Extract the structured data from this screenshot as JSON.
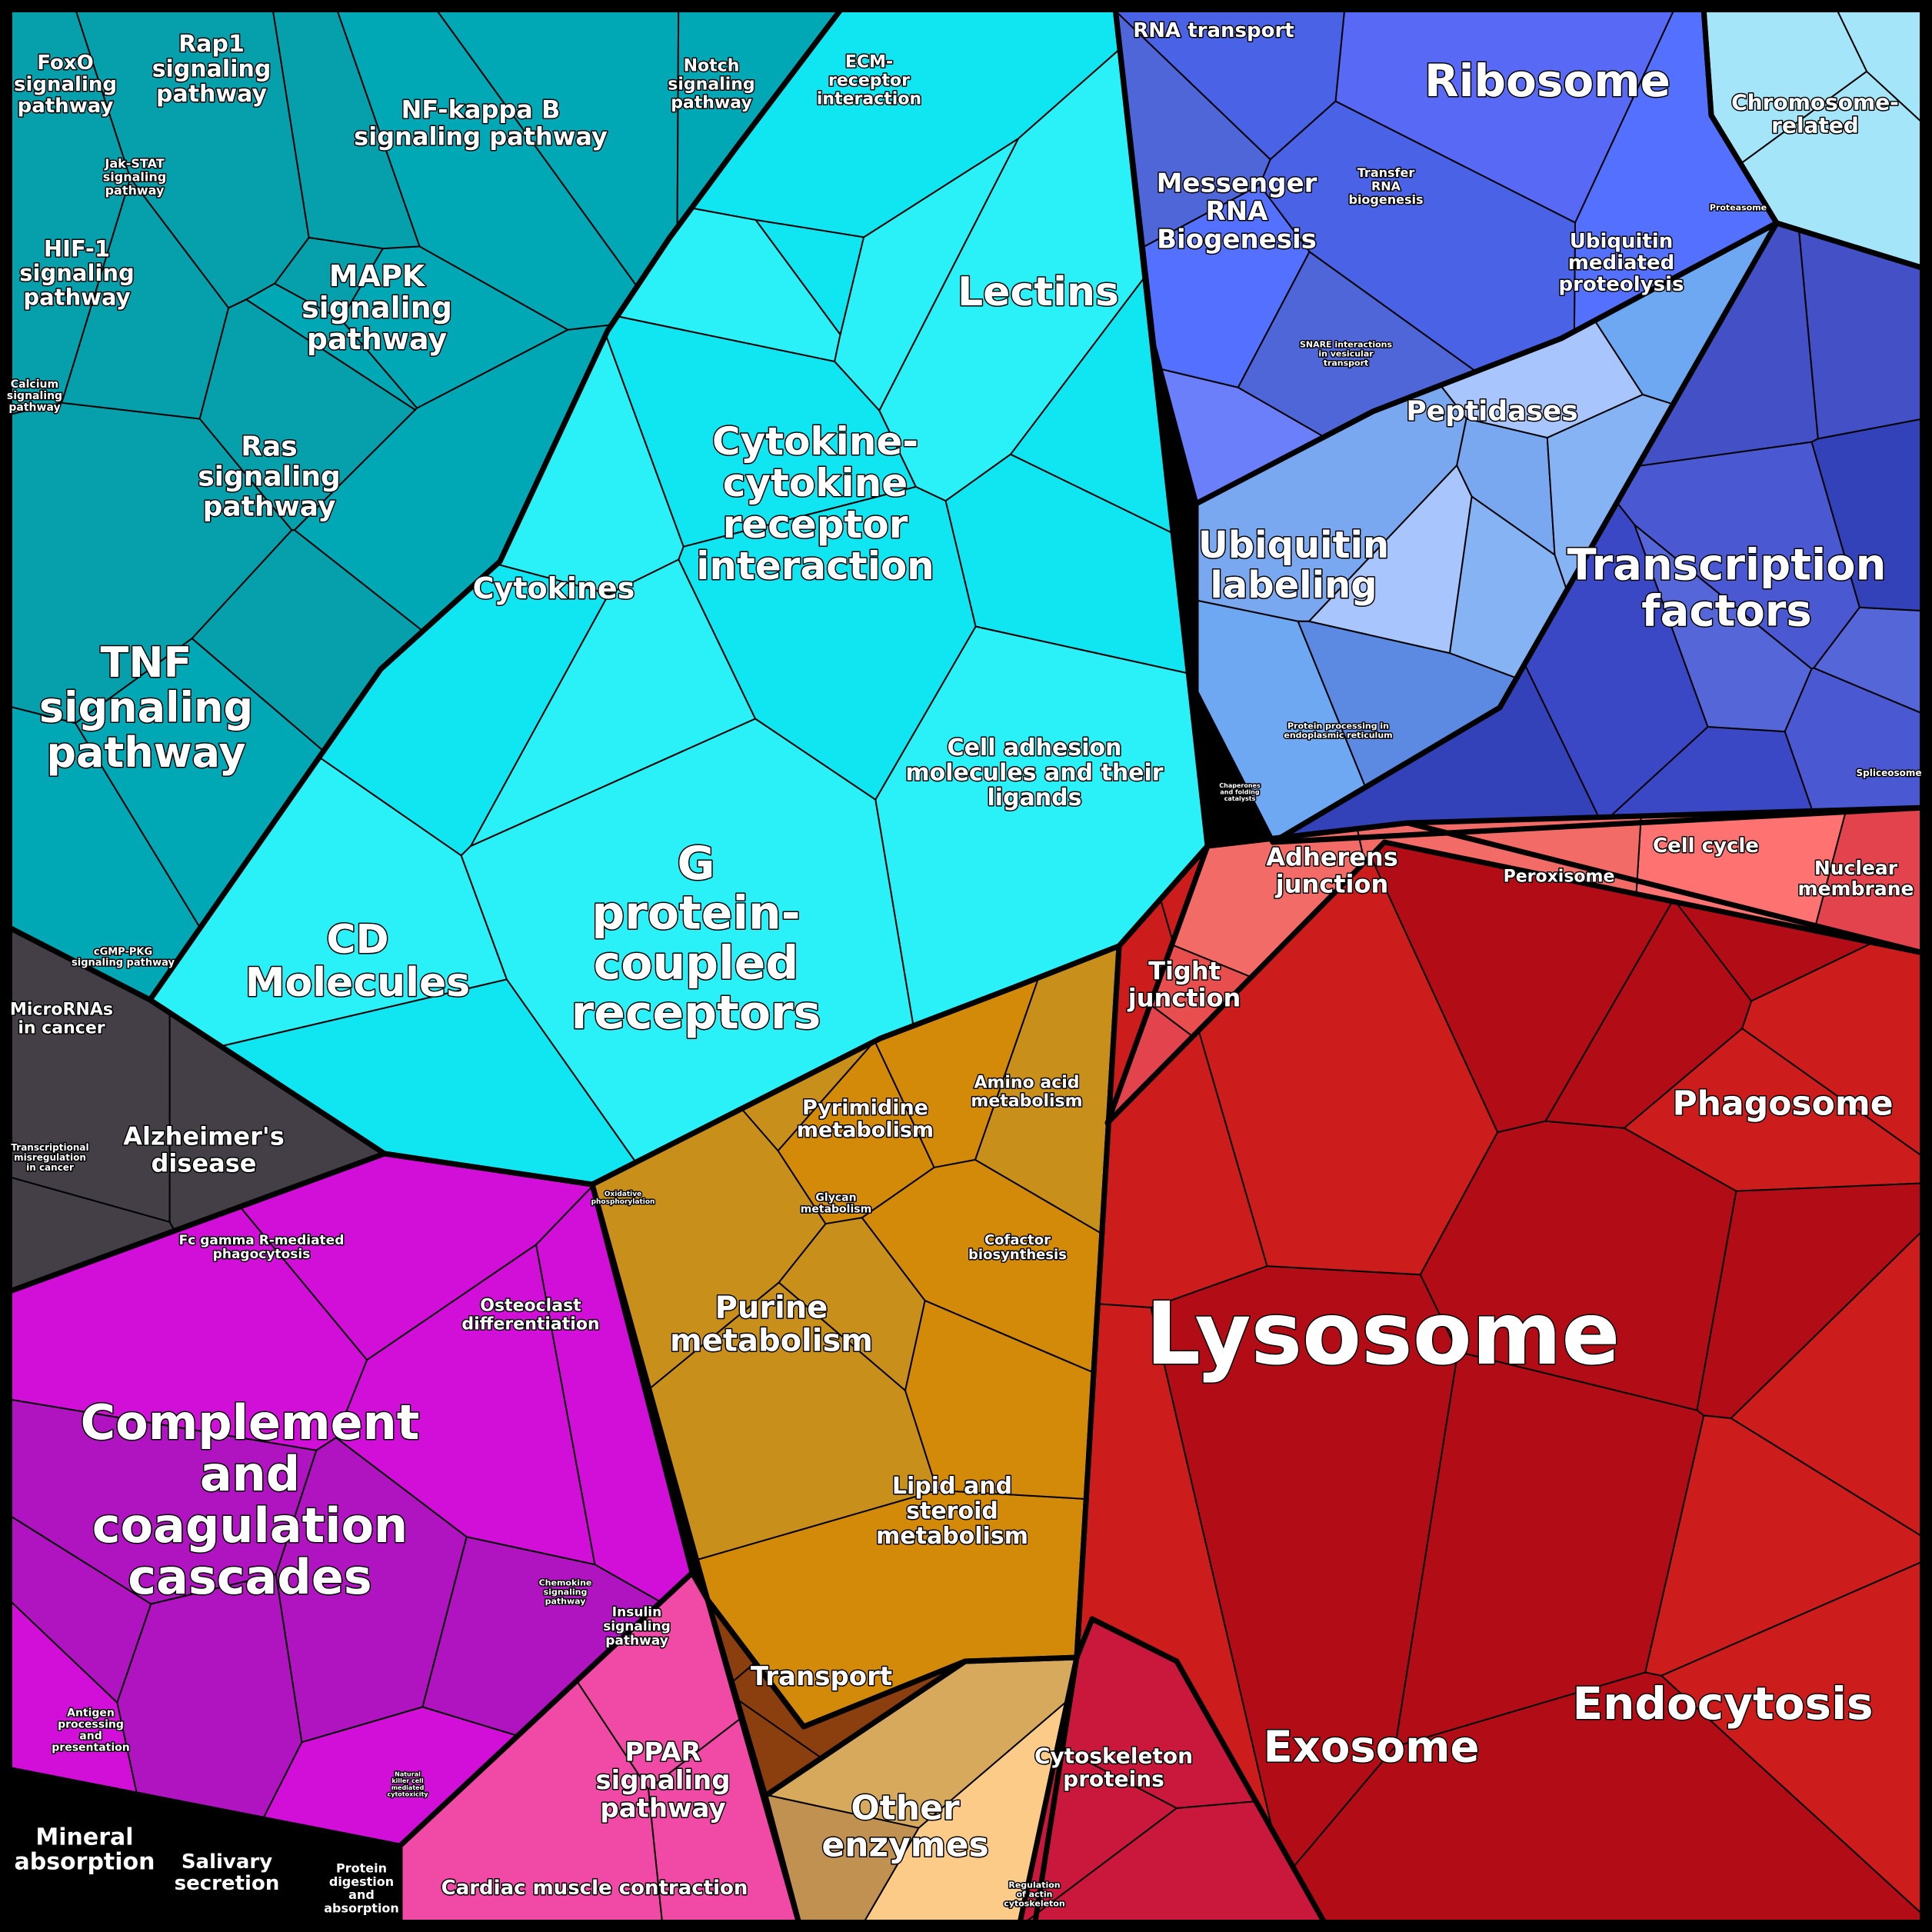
{
  "regions": [
    {
      "id": "signaling",
      "color": "#00b4c4",
      "shades": [
        "#00a7b5",
        "#00b5c3",
        "#11c0cf",
        "#05a0ac",
        "#30c8d8",
        "#00c3d2"
      ]
    },
    {
      "id": "cytokines",
      "color": "#22f4fd",
      "shades": [
        "#1afcff",
        "#2af0f8",
        "#45f8fc",
        "#3de8ef",
        "#10e6f2",
        "#38dee8"
      ]
    },
    {
      "id": "neuro",
      "color": "#3a373d",
      "shades": [
        "#3a373d",
        "#2f2b30",
        "#443f47"
      ]
    },
    {
      "id": "immune",
      "color": "#b414c4",
      "shades": [
        "#b014c0",
        "#c321c8",
        "#9c05a8",
        "#d10fd8",
        "#e822e8",
        "#a80bb4"
      ]
    },
    {
      "id": "insulin",
      "color": "#ee2c9a",
      "shades": [
        "#ee2c9a",
        "#f04aa6",
        "#e51a8c"
      ]
    },
    {
      "id": "metabolism",
      "color": "#eba628",
      "shades": [
        "#eda633",
        "#f3b23f",
        "#c8901a",
        "#e68a08",
        "#f8a020",
        "#d28a08"
      ]
    },
    {
      "id": "transport",
      "color": "#8b3f0e",
      "shades": [
        "#8b3f0e"
      ]
    },
    {
      "id": "enzymes",
      "color": "#dbab5c",
      "shades": [
        "#e6bd6f",
        "#d6a95c",
        "#c09150",
        "#fccb88"
      ]
    },
    {
      "id": "rna",
      "color": "#4d63ed",
      "shades": [
        "#5869f5",
        "#4a62e6",
        "#6a7ff9",
        "#5470ff",
        "#4e66d8"
      ]
    },
    {
      "id": "chromosome",
      "color": "#8fd4ef",
      "shades": [
        "#a5e5f9",
        "#7cc1e6",
        "#93d3ef"
      ]
    },
    {
      "id": "ubiquitin",
      "color": "#6e9ef0",
      "shades": [
        "#6ea7f2",
        "#85b3f4",
        "#5c8ae2",
        "#79a8f0",
        "#a9c5fd"
      ]
    },
    {
      "id": "tf",
      "color": "#3f4fcc",
      "shades": [
        "#3a48c5",
        "#4a58d2",
        "#3342b8",
        "#5566d9",
        "#4350c6"
      ]
    },
    {
      "id": "lysosome",
      "color": "#bb0f1b",
      "shades": [
        "#b20d16",
        "#c4131c",
        "#a20717",
        "#cd1c1c",
        "#be1a20",
        "#aa0a19"
      ]
    },
    {
      "id": "junction",
      "color": "#f05e5f",
      "shades": [
        "#f36b66",
        "#e3434d",
        "#ff7272",
        "#e84e4e"
      ]
    },
    {
      "id": "cytoskeleton",
      "color": "#e21f43",
      "shades": [
        "#e3264a",
        "#f4344e",
        "#c9183b"
      ]
    }
  ],
  "labels": [
    {
      "text": "FoxO\nsignaling\npathway",
      "size": 26
    },
    {
      "text": "Rap1\nsignaling\npathway",
      "size": 30
    },
    {
      "text": "NF-kappa B\nsignaling pathway",
      "size": 32
    },
    {
      "text": "Notch\nsignaling\npathway",
      "size": 22
    },
    {
      "text": "ECM-\nreceptor\ninteraction",
      "size": 22
    },
    {
      "text": "Jak-STAT\nsignaling\npathway",
      "size": 16
    },
    {
      "text": "HIF-1\nsignaling\npathway",
      "size": 29
    },
    {
      "text": "MAPK\nsignaling\npathway",
      "size": 38
    },
    {
      "text": "Calcium\nsignaling\npathway",
      "size": 14
    },
    {
      "text": "Ras\nsignaling\npathway",
      "size": 36
    },
    {
      "text": "TNF\nsignaling\npathway",
      "size": 54
    },
    {
      "text": "cGMP-PKG\nsignaling pathway",
      "size": 13
    },
    {
      "text": "Lectins",
      "size": 52
    },
    {
      "text": "Cytokine-\ncytokine\nreceptor\ninteraction",
      "size": 50
    },
    {
      "text": "Cytokines",
      "size": 38
    },
    {
      "text": "Cell adhesion\nmolecules and their\nligands",
      "size": 30
    },
    {
      "text": "CD\nMolecules",
      "size": 52
    },
    {
      "text": "G\nprotein-\ncoupled\nreceptors",
      "size": 60
    },
    {
      "text": "MicroRNAs\nin cancer",
      "size": 22
    },
    {
      "text": "Transcriptional\nmisregulation\nin cancer",
      "size": 12
    },
    {
      "text": "Alzheimer's\ndisease",
      "size": 32
    },
    {
      "text": "Fc gamma R-mediated\nphagocytosis",
      "size": 17
    },
    {
      "text": "Osteoclast\ndifferentiation",
      "size": 22
    },
    {
      "text": "Complement\nand\ncoagulation\ncascades",
      "size": 62
    },
    {
      "text": "Chemokine\nsignaling\npathway",
      "size": 11
    },
    {
      "text": "Antigen\nprocessing\nand\npresentation",
      "size": 14
    },
    {
      "text": "Natural\nkiller cell\nmediated\ncytotoxicity",
      "size": 8
    },
    {
      "text": "Mineral\nabsorption",
      "size": 30
    },
    {
      "text": "Salivary\nsecretion",
      "size": 26
    },
    {
      "text": "Protein\ndigestion\nand\nabsorption",
      "size": 16
    },
    {
      "text": "Insulin\nsignaling\npathway",
      "size": 17
    },
    {
      "text": "PPAR\nsignaling\npathway",
      "size": 34
    },
    {
      "text": "Cardiac muscle contraction",
      "size": 26
    },
    {
      "text": "Oxidative\nphosphorylation",
      "size": 9
    },
    {
      "text": "Pyrimidine\nmetabolism",
      "size": 27
    },
    {
      "text": "Amino acid\nmetabolism",
      "size": 22
    },
    {
      "text": "Glycan\nmetabolism",
      "size": 14
    },
    {
      "text": "Cofactor\nbiosynthesis",
      "size": 18
    },
    {
      "text": "Purine\nmetabolism",
      "size": 40
    },
    {
      "text": "Lipid and\nsteroid\nmetabolism",
      "size": 30
    },
    {
      "text": "Transport",
      "size": 34
    },
    {
      "text": "Other\nenzymes",
      "size": 44
    },
    {
      "text": "RNA transport",
      "size": 26
    },
    {
      "text": "Ribosome",
      "size": 58
    },
    {
      "text": "Chromosome-\nrelated",
      "size": 28
    },
    {
      "text": "Messenger\nRNA\nBiogenesis",
      "size": 34
    },
    {
      "text": "Transfer\nRNA\nbiogenesis",
      "size": 16
    },
    {
      "text": "Proteasome",
      "size": 11
    },
    {
      "text": "Ubiquitin\nmediated\nproteolysis",
      "size": 26
    },
    {
      "text": "SNARE interactions\nin vesicular\ntransport",
      "size": 11
    },
    {
      "text": "Peptidases",
      "size": 36
    },
    {
      "text": "Ubiquitin\nlabeling",
      "size": 48
    },
    {
      "text": "Transcription\nfactors",
      "size": 56
    },
    {
      "text": "Protein processing in\nendoplasmic reticulum",
      "size": 11
    },
    {
      "text": "Chaperones\nand folding\ncatalysts",
      "size": 8
    },
    {
      "text": "Spliceosome",
      "size": 12
    },
    {
      "text": "Adherens\njunction",
      "size": 32
    },
    {
      "text": "Peroxisome",
      "size": 22
    },
    {
      "text": "Cell cycle",
      "size": 26
    },
    {
      "text": "Nuclear\nmembrane",
      "size": 25
    },
    {
      "text": "Tight\njunction",
      "size": 32
    },
    {
      "text": "Phagosome",
      "size": 44
    },
    {
      "text": "Lysosome",
      "size": 112
    },
    {
      "text": "Endocytosis",
      "size": 58
    },
    {
      "text": "Exosome",
      "size": 56
    },
    {
      "text": "Cytoskeleton\nproteins",
      "size": 28
    },
    {
      "text": "Regulation\nof actin\ncytoskeleton",
      "size": 11
    }
  ]
}
